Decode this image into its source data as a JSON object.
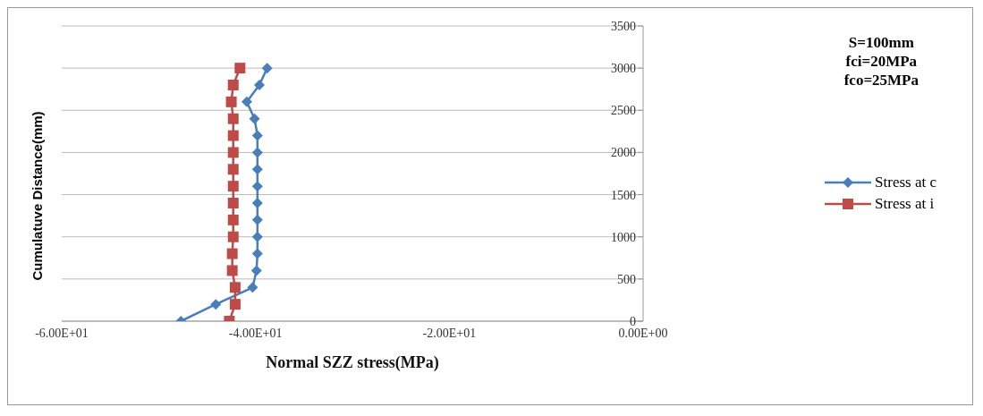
{
  "chart_data": {
    "type": "line",
    "xlabel": "Normal SZZ  stress(MPa)",
    "ylabel": "Cumulatuve Distance(mm)",
    "annotations": [
      "S=100mm",
      "fci=20MPa",
      "fco=25MPa"
    ],
    "xlim": [
      -60,
      0
    ],
    "xticks": [
      {
        "value": -60,
        "label": "-6.00E+01"
      },
      {
        "value": -40,
        "label": "-4.00E+01"
      },
      {
        "value": -20,
        "label": "-2.00E+01"
      },
      {
        "value": 0,
        "label": "0.00E+00"
      }
    ],
    "ylim": [
      0,
      3500
    ],
    "yticks": [
      0,
      500,
      1000,
      1500,
      2000,
      2500,
      3000,
      3500
    ],
    "grid": "y",
    "legend": "right",
    "series": [
      {
        "name": "Stress at c",
        "color": "#4a7ebb",
        "marker": "diamond",
        "x": [
          -47.7,
          -44.1,
          -40.3,
          -39.9,
          -39.8,
          -39.8,
          -39.8,
          -39.8,
          -39.8,
          -39.8,
          -39.8,
          -39.8,
          -40.1,
          -40.9,
          -39.6,
          -38.8
        ],
        "values": [
          0,
          200,
          400,
          600,
          800,
          1000,
          1200,
          1400,
          1600,
          1800,
          2000,
          2200,
          2400,
          2600,
          2800,
          3000
        ]
      },
      {
        "name": "Stress at i",
        "color": "#be4b48",
        "marker": "square",
        "x": [
          -42.7,
          -42.1,
          -42.1,
          -42.4,
          -42.4,
          -42.3,
          -42.3,
          -42.3,
          -42.3,
          -42.3,
          -42.3,
          -42.3,
          -42.3,
          -42.5,
          -42.3,
          -41.6
        ],
        "values": [
          0,
          200,
          400,
          600,
          800,
          1000,
          1200,
          1400,
          1600,
          1800,
          2000,
          2200,
          2400,
          2600,
          2800,
          3000
        ]
      }
    ]
  }
}
